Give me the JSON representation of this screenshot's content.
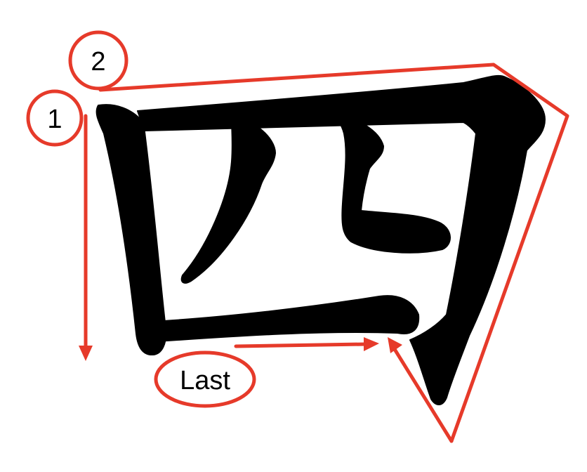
{
  "character": "四",
  "labels": {
    "first_stroke": "1",
    "second_stroke": "2",
    "last_stroke": "Last"
  },
  "colors": {
    "ink": "#000000",
    "annotation": "#e63a2a",
    "background": "#ffffff"
  }
}
